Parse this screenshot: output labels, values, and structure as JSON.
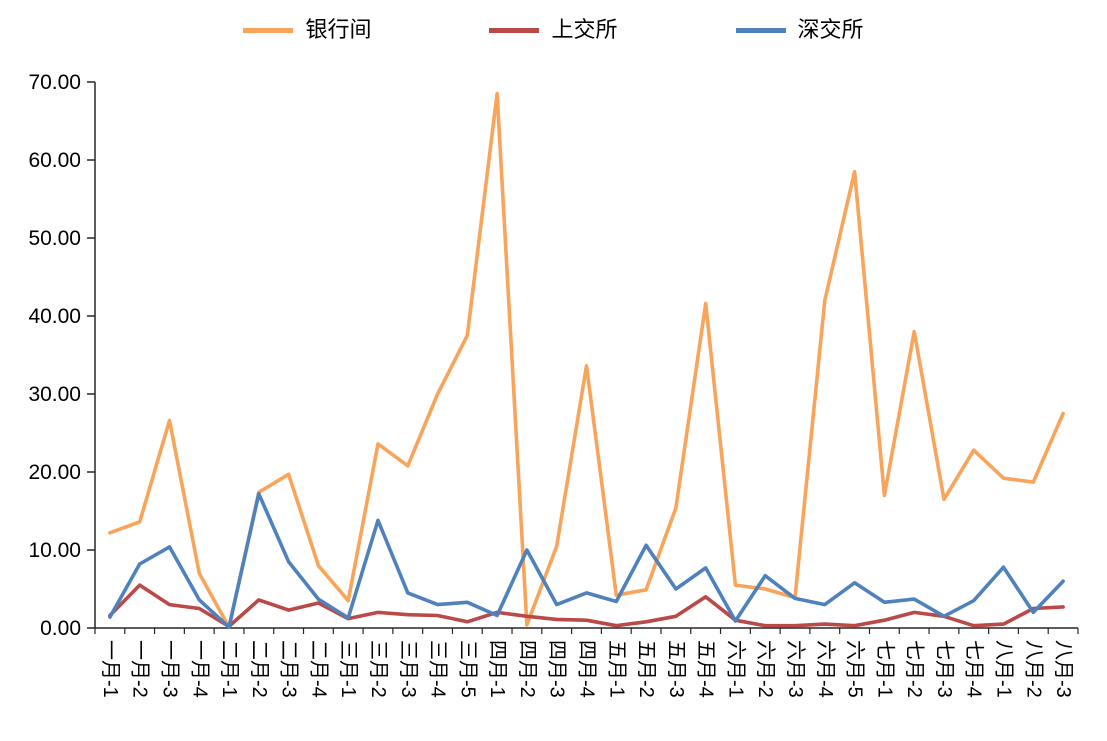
{
  "chart_data": {
    "type": "line",
    "title": "",
    "xlabel": "",
    "ylabel": "",
    "ylim": [
      0,
      70
    ],
    "ytick_step": 10,
    "ytick_labels": [
      "0.00",
      "10.00",
      "20.00",
      "30.00",
      "40.00",
      "50.00",
      "60.00",
      "70.00"
    ],
    "grid": false,
    "legend_position": "top",
    "categories": [
      "一月-1",
      "一月-2",
      "一月-3",
      "一月-4",
      "二月-1",
      "二月-2",
      "二月-3",
      "二月-4",
      "三月-1",
      "三月-2",
      "三月-3",
      "三月-4",
      "三月-5",
      "四月-1",
      "四月-2",
      "四月-3",
      "四月-4",
      "五月-1",
      "五月-2",
      "五月-3",
      "五月-4",
      "六月-1",
      "六月-2",
      "六月-3",
      "六月-4",
      "六月-5",
      "七月-1",
      "七月-2",
      "七月-3",
      "七月-4",
      "八月-1",
      "八月-2",
      "八月-3"
    ],
    "series": [
      {
        "name": "银行间",
        "color": "#F9A45B",
        "values": [
          12.2,
          13.6,
          26.6,
          7.0,
          0.1,
          17.4,
          19.7,
          8.0,
          3.5,
          23.6,
          20.8,
          30.0,
          37.5,
          68.5,
          0.4,
          10.5,
          33.6,
          4.2,
          4.9,
          15.4,
          41.6,
          5.5,
          5.0,
          3.9,
          42.0,
          58.5,
          17.0,
          38.0,
          16.5,
          22.8,
          19.2,
          18.7,
          27.5
        ]
      },
      {
        "name": "上交所",
        "color": "#B94A48",
        "values": [
          1.6,
          5.5,
          3.0,
          2.5,
          0.2,
          3.6,
          2.3,
          3.2,
          1.2,
          2.0,
          1.7,
          1.6,
          0.8,
          2.0,
          1.5,
          1.1,
          1.0,
          0.3,
          0.8,
          1.5,
          4.0,
          1.0,
          0.3,
          0.3,
          0.5,
          0.3,
          1.0,
          2.0,
          1.5,
          0.3,
          0.5,
          2.5,
          2.7
        ]
      },
      {
        "name": "深交所",
        "color": "#4F81BD",
        "values": [
          1.4,
          8.2,
          10.4,
          3.6,
          0.1,
          17.2,
          8.5,
          3.7,
          1.3,
          13.8,
          4.5,
          3.0,
          3.3,
          1.6,
          10.0,
          3.0,
          4.5,
          3.4,
          10.6,
          5.0,
          7.7,
          0.9,
          6.7,
          3.8,
          3.0,
          5.8,
          3.3,
          3.7,
          1.5,
          3.5,
          7.8,
          2.0,
          6.0
        ]
      }
    ]
  },
  "axis": {
    "color": "#262626"
  }
}
